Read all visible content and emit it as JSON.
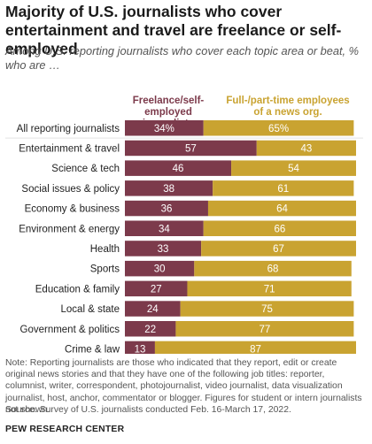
{
  "title": "Majority of U.S. journalists who cover entertainment and travel are freelance or self-employed",
  "subtitle": "Among U.S. reporting journalists who cover each topic area or beat, % who are …",
  "note": "Note: Reporting journalists are those who indicated that they report, edit or create original news stories and that they have one of the following job titles: reporter, columnist, writer, correspondent, photojournalist, video journalist, data visualization journalist, host, anchor, commentator or blogger. Figures for student or intern journalists not shown.",
  "source": "Source: Survey of U.S. journalists conducted Feb. 16-March 17, 2022.",
  "brand": "PEW RESEARCH CENTER",
  "colors": {
    "freelance": "#7c3a4b",
    "employee": "#c9a331",
    "separator": "#e3e3e3"
  },
  "chart_data": {
    "type": "bar",
    "orientation": "horizontal",
    "stacked": true,
    "categories": [
      "All reporting journalists",
      "Entertainment & travel",
      "Science & tech",
      "Social issues & policy",
      "Economy & business",
      "Environment & energy",
      "Health",
      "Sports",
      "Education & family",
      "Local & state",
      "Government & politics",
      "Crime & law"
    ],
    "series": [
      {
        "name": "Freelance/self-employed journalists",
        "values": [
          34,
          57,
          46,
          38,
          36,
          34,
          33,
          30,
          27,
          24,
          22,
          13
        ]
      },
      {
        "name": "Full-/part-time employees of a news org.",
        "values": [
          65,
          43,
          54,
          61,
          64,
          66,
          67,
          68,
          71,
          75,
          77,
          87
        ]
      }
    ],
    "label_suffix_first_row": "%",
    "xlim": [
      0,
      100
    ],
    "grid": false,
    "legend": "top"
  }
}
